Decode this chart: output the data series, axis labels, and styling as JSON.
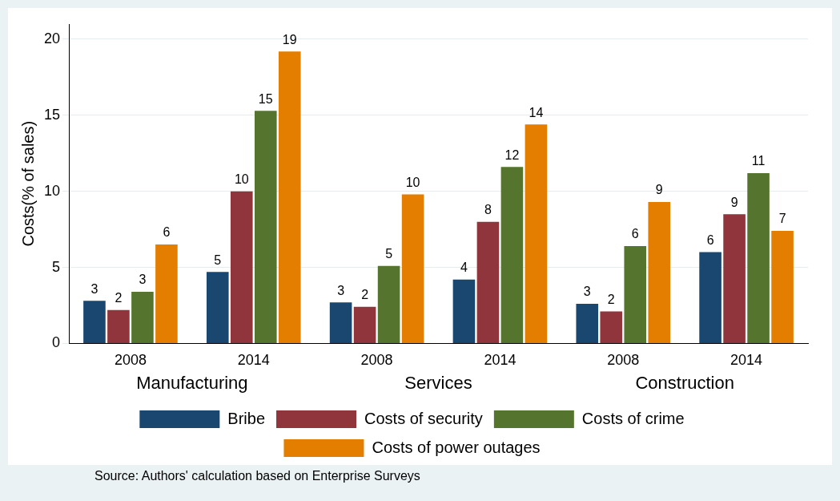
{
  "chart_data": {
    "type": "bar",
    "ylabel": "Costs(% of sales)",
    "categories": [
      "2008",
      "2014",
      "2008",
      "2014",
      "2008",
      "2014"
    ],
    "series": [
      {
        "name": "Bribe",
        "color": "#1a476f",
        "values": [
          2.8,
          4.7,
          2.7,
          4.2,
          2.6,
          6.0
        ],
        "value_labels": [
          "3",
          "5",
          "3",
          "4",
          "3",
          "6"
        ]
      },
      {
        "name": "Costs of security",
        "color": "#90353b",
        "values": [
          2.2,
          10.0,
          2.4,
          8.0,
          2.1,
          8.5
        ],
        "value_labels": [
          "2",
          "10",
          "2",
          "8",
          "2",
          "9"
        ]
      },
      {
        "name": "Costs of crime",
        "color": "#55752f",
        "values": [
          3.4,
          15.3,
          5.1,
          11.6,
          6.4,
          11.2
        ],
        "value_labels": [
          "3",
          "15",
          "5",
          "12",
          "6",
          "11"
        ]
      },
      {
        "name": "Costs of power outages",
        "color": "#e37e00",
        "values": [
          6.5,
          19.2,
          9.8,
          14.4,
          9.3,
          7.4
        ],
        "value_labels": [
          "6",
          "19",
          "10",
          "14",
          "9",
          "7"
        ]
      }
    ],
    "ylim": [
      0,
      21
    ],
    "yticks": [
      0,
      5,
      10,
      15,
      20
    ],
    "grid": "y",
    "legend": "bottom",
    "annotations": [
      "Manufacturing",
      "Services",
      "Construction",
      "Source: Authors' calculation based on Enterprise Surveys"
    ]
  }
}
